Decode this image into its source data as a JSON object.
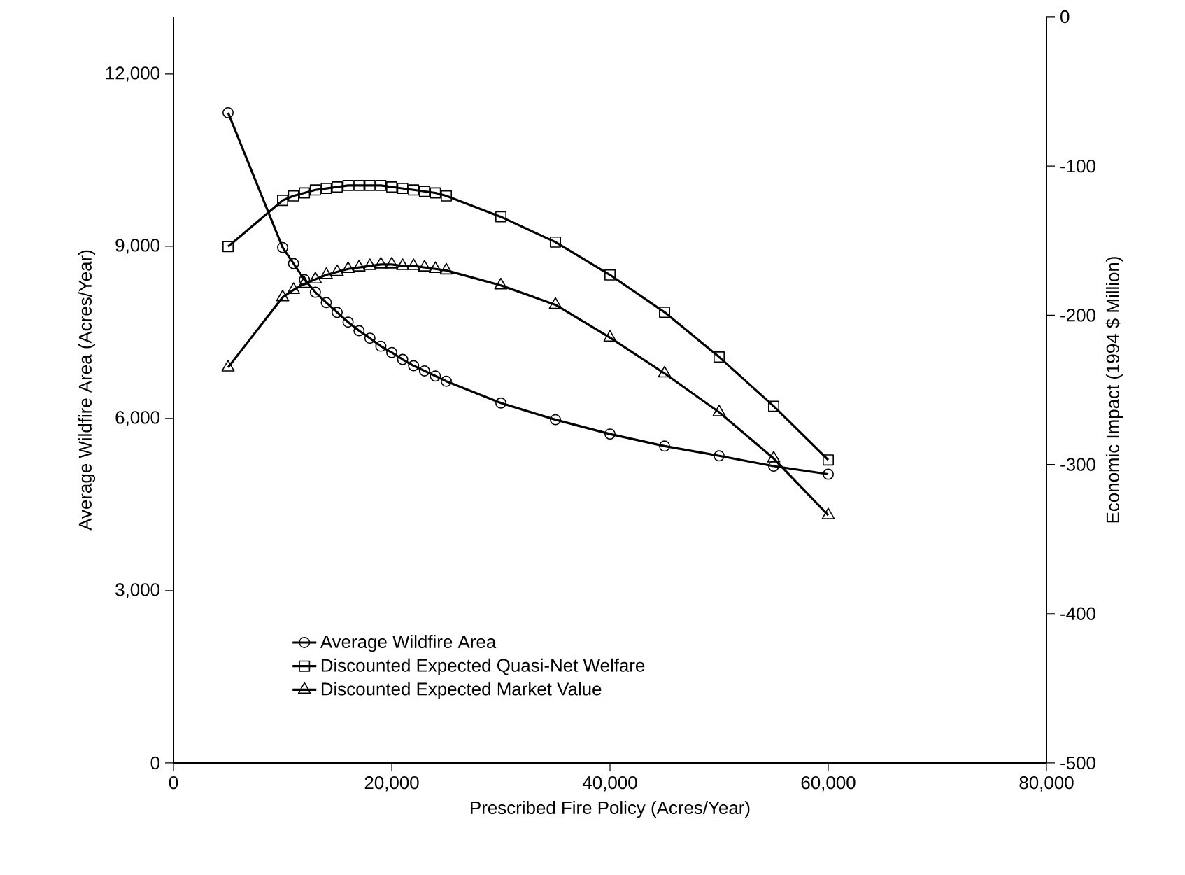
{
  "chart_data": {
    "type": "line",
    "xlabel": "Prescribed Fire Policy (Acres/Year)",
    "ylabel": "Average Wildfire Area (Acres/Year)",
    "y2label": "Economic Impact (1994 $ Million)",
    "xlim": [
      0,
      80000
    ],
    "xticks": [
      {
        "value": 0,
        "label": "0"
      },
      {
        "value": 20000,
        "label": "20,000"
      },
      {
        "value": 40000,
        "label": "40,000"
      },
      {
        "value": 60000,
        "label": "60,000"
      },
      {
        "value": 80000,
        "label": "80,000"
      }
    ],
    "ylim": [
      0,
      13000
    ],
    "yticks": [
      {
        "value": 0,
        "label": "0"
      },
      {
        "value": 3000,
        "label": "3,000"
      },
      {
        "value": 6000,
        "label": "6,000"
      },
      {
        "value": 9000,
        "label": "9,000"
      },
      {
        "value": 12000,
        "label": "12,000"
      }
    ],
    "y2lim": [
      -500,
      0
    ],
    "y2ticks": [
      -500,
      -400,
      -300,
      -200,
      -100,
      0
    ],
    "x": [
      5000,
      10000,
      11000,
      12000,
      13000,
      14000,
      15000,
      16000,
      17000,
      18000,
      19000,
      20000,
      21000,
      22000,
      23000,
      24000,
      25000,
      30000,
      35000,
      40000,
      45000,
      50000,
      55000,
      60000
    ],
    "legend": "bottom left",
    "grid": false,
    "line_style": "solid",
    "series": [
      {
        "name": "Average Wildfire Area",
        "color": "#000000",
        "marker": "circle",
        "values": [
          11330,
          8980,
          8700,
          8420,
          8200,
          8020,
          7850,
          7680,
          7530,
          7400,
          7260,
          7150,
          7030,
          6920,
          6830,
          6740,
          6650,
          6270,
          5980,
          5730,
          5520,
          5350,
          5170,
          5030
        ]
      },
      {
        "name": "Discounted Expected Quasi-Net Welfare",
        "color": "#000000",
        "marker": "square",
        "axis": "y2",
        "values": [
          -154,
          -123,
          -120,
          -118,
          -116,
          -115,
          -114,
          -113,
          -113,
          -113,
          -113,
          -114,
          -115,
          -116,
          -117,
          -118,
          -120,
          -134,
          -151,
          -173,
          -198,
          -228,
          -261,
          -297
        ]
      },
      {
        "name": "Discounted Expected Market Value",
        "color": "#000000",
        "marker": "triangle",
        "axis": "y2",
        "values": [
          -235,
          -188,
          -183,
          -179,
          -176,
          -173,
          -171,
          -169,
          -168,
          -167,
          -166,
          -166,
          -167,
          -167,
          -168,
          -169,
          -170,
          -180,
          -193,
          -215,
          -239,
          -265,
          -296,
          -334
        ]
      }
    ]
  }
}
